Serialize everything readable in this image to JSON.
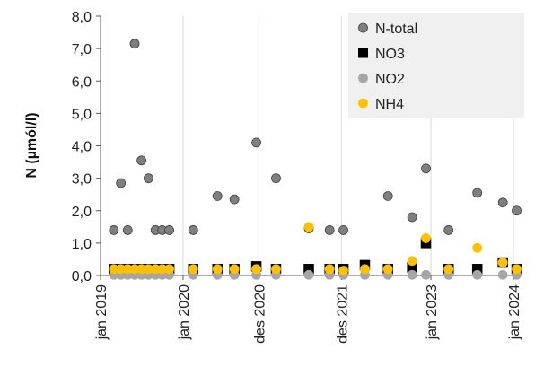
{
  "chart_data": {
    "type": "scatter",
    "ylabel": "N (µmól/l)",
    "ylim": [
      0,
      8
    ],
    "y_ticks": [
      "0,0",
      "1,0",
      "2,0",
      "3,0",
      "4,0",
      "5,0",
      "6,0",
      "7,0",
      "8,0"
    ],
    "x_ticks": [
      "jan 2019",
      "jan 2020",
      "des 2020",
      "des 2021",
      "jan 2023",
      "jan 2024"
    ],
    "xlim": [
      "2019-01-01",
      "2024-01-01"
    ],
    "grid": "vertical",
    "legend_position": "top-right",
    "series": [
      {
        "name": "N-total",
        "color": "#7f7f7f",
        "marker": "circle",
        "points": [
          [
            "2019-03-01",
            1.4
          ],
          [
            "2019-04-01",
            2.85
          ],
          [
            "2019-05-01",
            1.4
          ],
          [
            "2019-06-01",
            7.15
          ],
          [
            "2019-07-01",
            3.55
          ],
          [
            "2019-08-01",
            3.0
          ],
          [
            "2019-09-01",
            1.4
          ],
          [
            "2019-10-01",
            1.4
          ],
          [
            "2019-11-01",
            1.4
          ],
          [
            "2020-02-15",
            1.4
          ],
          [
            "2020-06-01",
            2.45
          ],
          [
            "2020-08-15",
            2.35
          ],
          [
            "2020-11-20",
            4.1
          ],
          [
            "2021-02-15",
            3.0
          ],
          [
            "2021-07-10",
            1.45
          ],
          [
            "2021-10-10",
            1.4
          ],
          [
            "2021-12-10",
            1.4
          ],
          [
            "2022-06-25",
            2.45
          ],
          [
            "2022-10-10",
            1.8
          ],
          [
            "2022-12-10",
            3.3
          ],
          [
            "2023-03-20",
            1.4
          ],
          [
            "2023-07-25",
            2.55
          ],
          [
            "2023-11-15",
            2.25
          ],
          [
            "2024-01-15",
            2.0
          ]
        ]
      },
      {
        "name": "NO3",
        "color": "#000000",
        "marker": "square",
        "points": [
          [
            "2019-03-01",
            0.2
          ],
          [
            "2019-04-01",
            0.2
          ],
          [
            "2019-05-01",
            0.2
          ],
          [
            "2019-06-01",
            0.2
          ],
          [
            "2019-07-01",
            0.2
          ],
          [
            "2019-08-01",
            0.2
          ],
          [
            "2019-09-01",
            0.2
          ],
          [
            "2019-10-01",
            0.2
          ],
          [
            "2019-11-01",
            0.2
          ],
          [
            "2020-02-15",
            0.2
          ],
          [
            "2020-06-01",
            0.2
          ],
          [
            "2020-08-15",
            0.2
          ],
          [
            "2020-11-20",
            0.28
          ],
          [
            "2021-02-15",
            0.2
          ],
          [
            "2021-07-10",
            0.2
          ],
          [
            "2021-10-10",
            0.2
          ],
          [
            "2021-12-10",
            0.2
          ],
          [
            "2022-03-15",
            0.32
          ],
          [
            "2022-06-25",
            0.2
          ],
          [
            "2022-10-10",
            0.25
          ],
          [
            "2022-12-10",
            1.0
          ],
          [
            "2023-03-20",
            0.2
          ],
          [
            "2023-07-25",
            0.2
          ],
          [
            "2023-11-15",
            0.4
          ],
          [
            "2024-01-15",
            0.2
          ]
        ]
      },
      {
        "name": "NO2",
        "color": "#a6a6a6",
        "marker": "circle",
        "points": [
          [
            "2019-03-01",
            0.02
          ],
          [
            "2019-04-01",
            0.02
          ],
          [
            "2019-05-01",
            0.02
          ],
          [
            "2019-06-01",
            0.02
          ],
          [
            "2019-07-01",
            0.02
          ],
          [
            "2019-08-01",
            0.02
          ],
          [
            "2019-09-01",
            0.02
          ],
          [
            "2019-10-01",
            0.02
          ],
          [
            "2019-11-01",
            0.02
          ],
          [
            "2020-02-15",
            0.02
          ],
          [
            "2020-06-01",
            0.02
          ],
          [
            "2020-08-15",
            0.02
          ],
          [
            "2020-11-20",
            0.02
          ],
          [
            "2021-02-15",
            0.02
          ],
          [
            "2021-07-10",
            0.02
          ],
          [
            "2021-10-10",
            0.02
          ],
          [
            "2021-12-10",
            0.02
          ],
          [
            "2022-03-15",
            0.02
          ],
          [
            "2022-06-25",
            0.02
          ],
          [
            "2022-10-10",
            0.02
          ],
          [
            "2022-12-10",
            0.02
          ],
          [
            "2023-03-20",
            0.02
          ],
          [
            "2023-07-25",
            0.02
          ],
          [
            "2023-11-15",
            0.02
          ],
          [
            "2024-01-15",
            0.02
          ]
        ]
      },
      {
        "name": "NH4",
        "color": "#ffc000",
        "marker": "circle",
        "points": [
          [
            "2019-03-01",
            0.2
          ],
          [
            "2019-04-01",
            0.2
          ],
          [
            "2019-05-01",
            0.2
          ],
          [
            "2019-06-01",
            0.2
          ],
          [
            "2019-07-01",
            0.2
          ],
          [
            "2019-08-01",
            0.2
          ],
          [
            "2019-09-01",
            0.2
          ],
          [
            "2019-10-01",
            0.2
          ],
          [
            "2019-11-01",
            0.2
          ],
          [
            "2020-02-15",
            0.2
          ],
          [
            "2020-06-01",
            0.2
          ],
          [
            "2020-08-15",
            0.2
          ],
          [
            "2020-11-20",
            0.2
          ],
          [
            "2021-02-15",
            0.2
          ],
          [
            "2021-07-10",
            1.5
          ],
          [
            "2021-10-10",
            0.2
          ],
          [
            "2021-12-10",
            0.15
          ],
          [
            "2022-03-15",
            0.2
          ],
          [
            "2022-06-25",
            0.2
          ],
          [
            "2022-10-10",
            0.45
          ],
          [
            "2022-12-10",
            1.15
          ],
          [
            "2023-03-20",
            0.2
          ],
          [
            "2023-07-25",
            0.85
          ],
          [
            "2023-11-15",
            0.4
          ],
          [
            "2024-01-15",
            0.2
          ]
        ]
      }
    ]
  }
}
